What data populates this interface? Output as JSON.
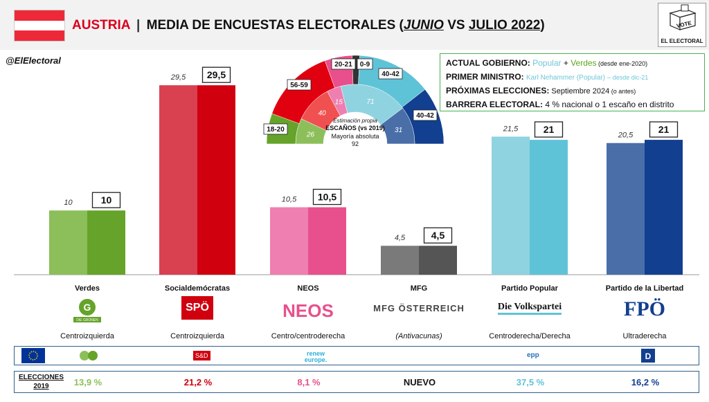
{
  "header": {
    "country": "AUSTRIA",
    "separator": "|",
    "title_main": "MEDIA DE ENCUESTAS ELECTORALES (",
    "title_junio": "JUNIO",
    "title_vs": " VS ",
    "title_julio": "JULIO 2022",
    "title_close": ")",
    "flag_colors": [
      "#ed2939",
      "#ffffff",
      "#ed2939"
    ]
  },
  "brand": {
    "vote": "VOTE",
    "name": "EL ELECTORAL"
  },
  "handle": "@ElElectoral",
  "info": {
    "gov_label": "ACTUAL GOBIERNO:",
    "gov_popular": "Popular",
    "gov_plus": " + ",
    "gov_verdes": "Verdes",
    "gov_since": " (desde ene-2020)",
    "pm_label": "PRIMER MINISTRO:",
    "pm_value": "Karl Nehammer (Popular) –",
    "pm_since": " desde dic-21",
    "next_label": "PRÓXIMAS ELECCIONES:",
    "next_value": " Septiembre 2024",
    "next_note": " (o antes)",
    "barrier_label": "BARRERA ELECTORAL:",
    "barrier_value": " 4 % nacional o 1 escaño en distrito"
  },
  "hemicycle": {
    "subtitle": "Estimación propia",
    "title": "ESCAÑOS (vs 2019)",
    "majority_label": "Mayoría absoluta",
    "majority_value": "92",
    "outer_labels": [
      "18-20",
      "56-59",
      "20-21",
      "0-9",
      "40-42",
      "40-42"
    ],
    "inner_values": [
      "26",
      "40",
      "15",
      "71",
      "31"
    ]
  },
  "chart_data": {
    "type": "bar",
    "categories": [
      "Verdes",
      "Socialdemócratas",
      "NEOS",
      "MFG",
      "Partido Popular",
      "Partido de la Libertad"
    ],
    "series": [
      {
        "name": "JUNIO",
        "values": [
          10,
          29.5,
          10.5,
          4.5,
          21.5,
          20.5
        ],
        "labels": [
          "10",
          "29,5",
          "10,5",
          "4,5",
          "21,5",
          "20,5"
        ]
      },
      {
        "name": "JULIO 2022",
        "values": [
          10,
          29.5,
          10.5,
          4.5,
          21,
          21
        ],
        "labels": [
          "10",
          "29,5",
          "10,5",
          "4,5",
          "21",
          "21"
        ]
      }
    ],
    "colors_light": [
      "#8cbf5a",
      "#d94050",
      "#ef7fb0",
      "#7a7a7a",
      "#8fd3e0",
      "#4a6fa8"
    ],
    "colors_dark": [
      "#65a32a",
      "#d0000f",
      "#e8508d",
      "#555555",
      "#5fc3d8",
      "#123f8f"
    ],
    "ylim": [
      0,
      32
    ]
  },
  "parties": [
    {
      "name": "Verdes",
      "logo": "DIE GRÜNEN",
      "ideology": "Centroizquierda",
      "result2019": "13,9 %",
      "color": "#8cbf5a"
    },
    {
      "name": "Socialdemócratas",
      "logo": "SPÖ",
      "ideology": "Centroizquierda",
      "result2019": "21,2 %",
      "color": "#d0000f"
    },
    {
      "name": "NEOS",
      "logo": "NEOS",
      "ideology": "Centro/centroderecha",
      "result2019": "8,1 %",
      "color": "#e8508d"
    },
    {
      "name": "MFG",
      "logo": "MFG ÖSTERREICH",
      "ideology": "(Antivacunas)",
      "result2019": "NUEVO",
      "color": "#111111"
    },
    {
      "name": "Partido Popular",
      "logo": "Die Volkspartei",
      "ideology": "Centroderecha/Derecha",
      "result2019": "37,5 %",
      "color": "#5fc3d8"
    },
    {
      "name": "Partido de la Libertad",
      "logo": "FPÖ",
      "ideology": "Ultraderecha",
      "result2019": "16,2 %",
      "color": "#123f8f"
    }
  ],
  "eu_groups": [
    "S&D",
    "renew europe.",
    "epp"
  ],
  "results_label_1": "ELECCIONES",
  "results_label_2": "2019"
}
